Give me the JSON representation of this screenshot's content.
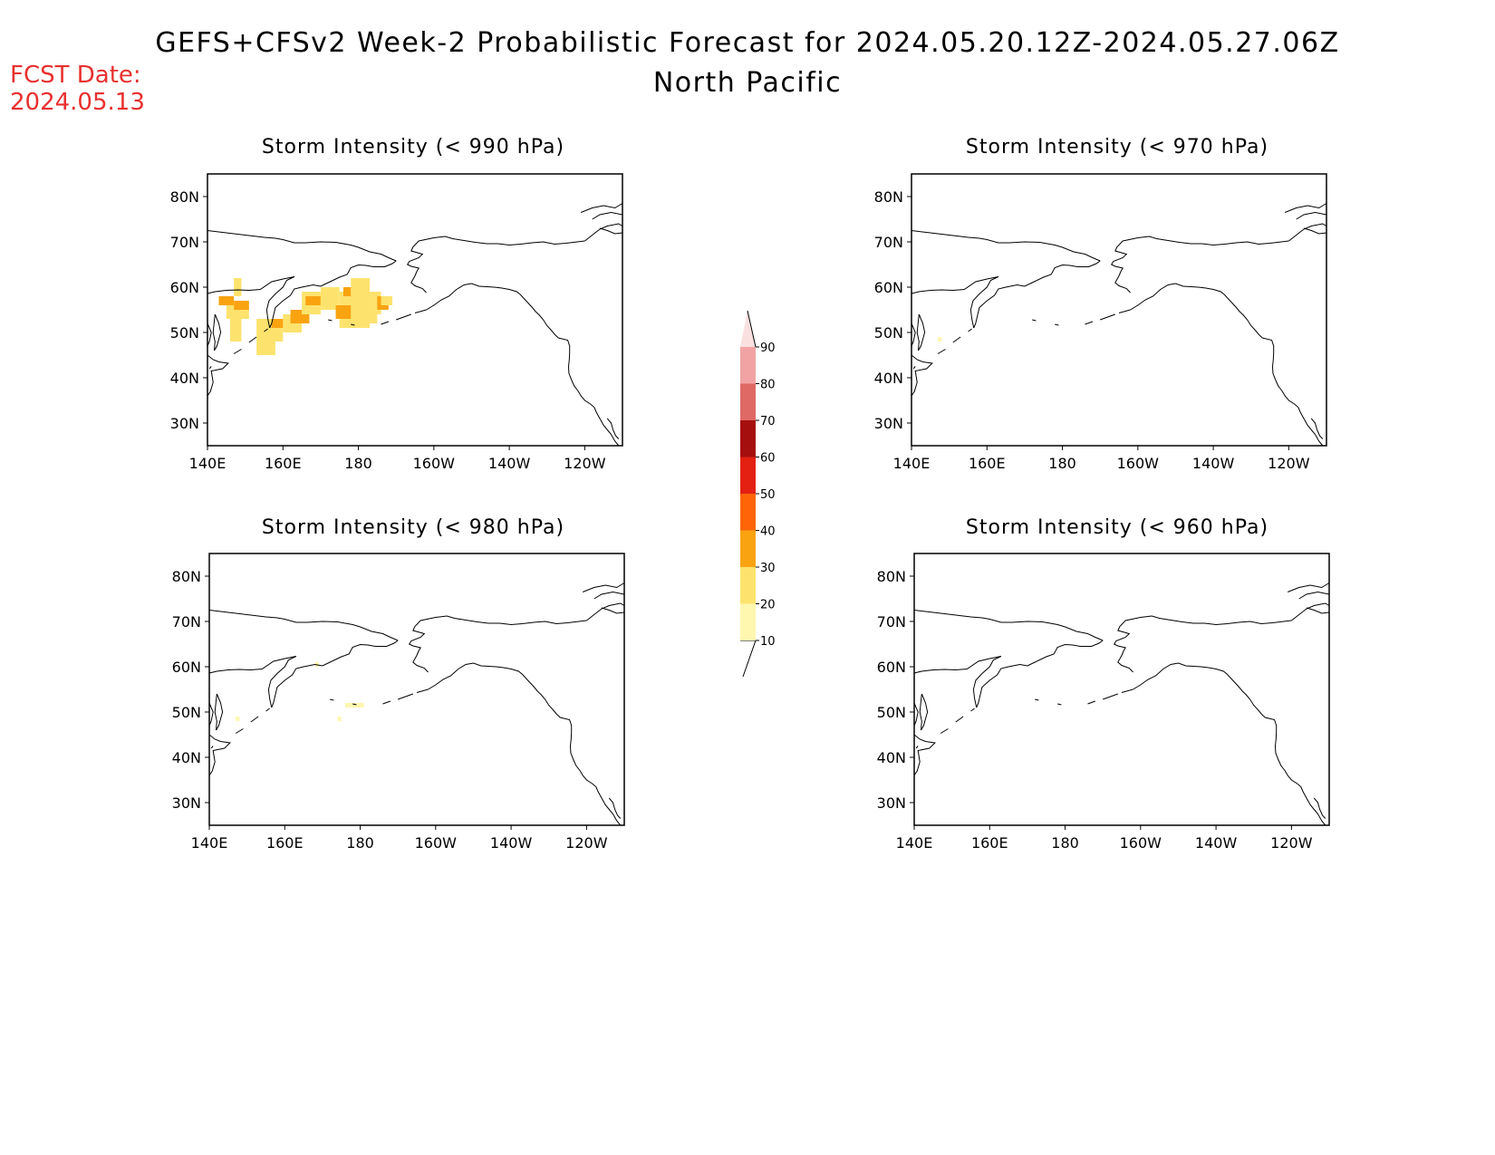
{
  "header": {
    "title": "GEFS+CFSv2 Week-2 Probabilistic Forecast for 2024.05.20.12Z-2024.05.27.06Z",
    "subtitle": "North Pacific",
    "fcst_date_label": "FCST Date:",
    "fcst_date_value": "2024.05.13",
    "fcst_color": "#e8302f"
  },
  "axes": {
    "lat_labels": [
      "80N",
      "70N",
      "60N",
      "50N",
      "40N",
      "30N"
    ],
    "lon_labels": [
      "140E",
      "160E",
      "180",
      "160W",
      "140W",
      "120W"
    ]
  },
  "panels": [
    {
      "id": "p990",
      "title": "Storm Intensity (< 990 hPa)",
      "cells": [
        {
          "lon": 147,
          "lat": 58,
          "w": 2,
          "h": 4,
          "p": 20
        },
        {
          "lon": 143,
          "lat": 56,
          "w": 4,
          "h": 2,
          "p": 30
        },
        {
          "lon": 145,
          "lat": 53,
          "w": 6,
          "h": 3,
          "p": 20
        },
        {
          "lon": 146,
          "lat": 48,
          "w": 3,
          "h": 5,
          "p": 20
        },
        {
          "lon": 147,
          "lat": 55,
          "w": 4,
          "h": 2,
          "p": 30
        },
        {
          "lon": 153,
          "lat": 45,
          "w": 5,
          "h": 8,
          "p": 20
        },
        {
          "lon": 156,
          "lat": 48,
          "w": 4,
          "h": 4,
          "p": 20
        },
        {
          "lon": 157,
          "lat": 51,
          "w": 4,
          "h": 2,
          "p": 30
        },
        {
          "lon": 160,
          "lat": 50,
          "w": 5,
          "h": 4,
          "p": 20
        },
        {
          "lon": 162,
          "lat": 52,
          "w": 5,
          "h": 3,
          "p": 30
        },
        {
          "lon": 165,
          "lat": 54,
          "w": 5,
          "h": 5,
          "p": 20
        },
        {
          "lon": 166,
          "lat": 56,
          "w": 4,
          "h": 2,
          "p": 30
        },
        {
          "lon": 170,
          "lat": 55,
          "w": 5,
          "h": 5,
          "p": 20
        },
        {
          "lon": 175,
          "lat": 51,
          "w": 8,
          "h": 8,
          "p": 20
        },
        {
          "lon": 174,
          "lat": 53,
          "w": 4,
          "h": 3,
          "p": 30
        },
        {
          "lon": 178,
          "lat": 56,
          "w": 5,
          "h": 6,
          "p": 20
        },
        {
          "lon": 183,
          "lat": 54,
          "w": 3,
          "h": 5,
          "p": 20
        },
        {
          "lon": 185,
          "lat": 55,
          "w": 3,
          "h": 3,
          "p": 30
        },
        {
          "lon": 181,
          "lat": 52,
          "w": 4,
          "h": 2,
          "p": 20
        },
        {
          "lon": 186,
          "lat": 56,
          "w": 3,
          "h": 2,
          "p": 20
        },
        {
          "lon": 176,
          "lat": 58,
          "w": 2,
          "h": 2,
          "p": 30
        }
      ]
    },
    {
      "id": "p970",
      "title": "Storm Intensity (< 970 hPa)",
      "cells": [
        {
          "lon": 147,
          "lat": 48,
          "w": 1,
          "h": 1,
          "p": 10
        }
      ]
    },
    {
      "id": "p980",
      "title": "Storm Intensity (< 980 hPa)",
      "cells": [
        {
          "lon": 168,
          "lat": 60,
          "w": 1,
          "h": 1,
          "p": 10
        },
        {
          "lon": 174,
          "lat": 48,
          "w": 1,
          "h": 1,
          "p": 10
        },
        {
          "lon": 176,
          "lat": 51,
          "w": 5,
          "h": 1,
          "p": 10
        },
        {
          "lon": 147,
          "lat": 48,
          "w": 1,
          "h": 1,
          "p": 10
        }
      ]
    },
    {
      "id": "p960",
      "title": "Storm Intensity (< 960 hPa)",
      "cells": []
    }
  ],
  "colorbar": {
    "levels": [
      "10",
      "20",
      "30",
      "40",
      "50",
      "60",
      "70",
      "80",
      "90"
    ],
    "colors": [
      "#fff7b0",
      "#fde36e",
      "#f9a311",
      "#ff6508",
      "#e32012",
      "#a50f0d",
      "#de6965",
      "#f1a3a3",
      "#fbe0e0"
    ]
  }
}
